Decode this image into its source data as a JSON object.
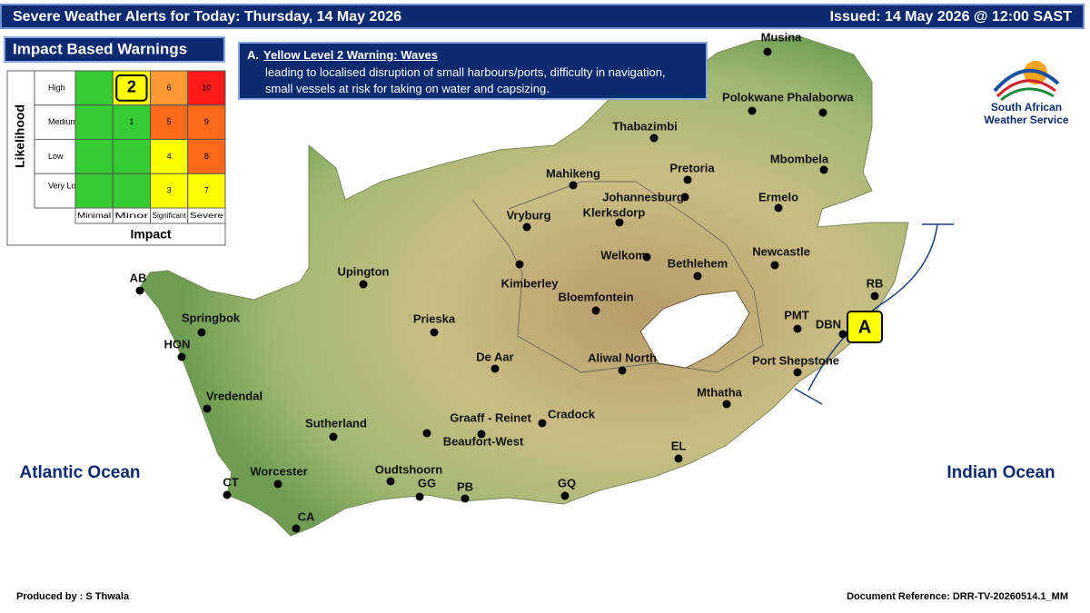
{
  "header": {
    "title": "Severe Weather Alerts for Today: Thursday, 14 May 2026",
    "issued": "Issued: 14 May 2026 @ 12:00 SAST"
  },
  "matrix": {
    "title": "Impact Based Warnings",
    "y_label": "Likelihood",
    "x_label": "Impact",
    "rows": [
      "High",
      "Medium",
      "Low",
      "Very Low"
    ],
    "columns": [
      "Minimal",
      "Minor",
      "Significant",
      "Severe"
    ],
    "cells": [
      [
        null,
        2,
        6,
        10
      ],
      [
        null,
        1,
        5,
        9
      ],
      [
        null,
        null,
        4,
        8
      ],
      [
        null,
        null,
        3,
        7
      ]
    ]
  },
  "warning": {
    "label": "A.",
    "title": "Yellow Level 2  Warning: Waves",
    "text": "leading to localised disruption of small harbours/ports, difficulty in navigation, small vessels at risk for taking on water and capsizing."
  },
  "logo": {
    "line1": "South African",
    "line2": "Weather Service"
  },
  "oceans": [
    "Atlantic Ocean",
    "Indian Ocean"
  ],
  "area_marker": "A",
  "places": [
    "Musina",
    "Polokwane",
    "Phalaborwa",
    "Thabazimbi",
    "Pretoria",
    "Mbombela",
    "Mahikeng",
    "Johannesburg",
    "Ermelo",
    "Vryburg",
    "Klerksdorp",
    "Welkom",
    "Newcastle",
    "Bethlehem",
    "Upington",
    "AB",
    "Kimberley",
    "RB",
    "Bloemfontein",
    "PMT",
    "DBN",
    "Springbok",
    "Prieska",
    "HON",
    "De Aar",
    "Aliwal North",
    "Port Shepstone",
    "Vredendal",
    "Mthatha",
    "Graaff - Reinet",
    "Cradock",
    "Sutherland",
    "Beaufort-West",
    "EL",
    "Worcester",
    "Oudtshoorn",
    "CT",
    "GG",
    "PB",
    "GQ",
    "CA"
  ],
  "footer": {
    "produced": "Produced by : S Thwala",
    "reference": "Document Reference: DRR-TV-20260514.1_MM"
  }
}
